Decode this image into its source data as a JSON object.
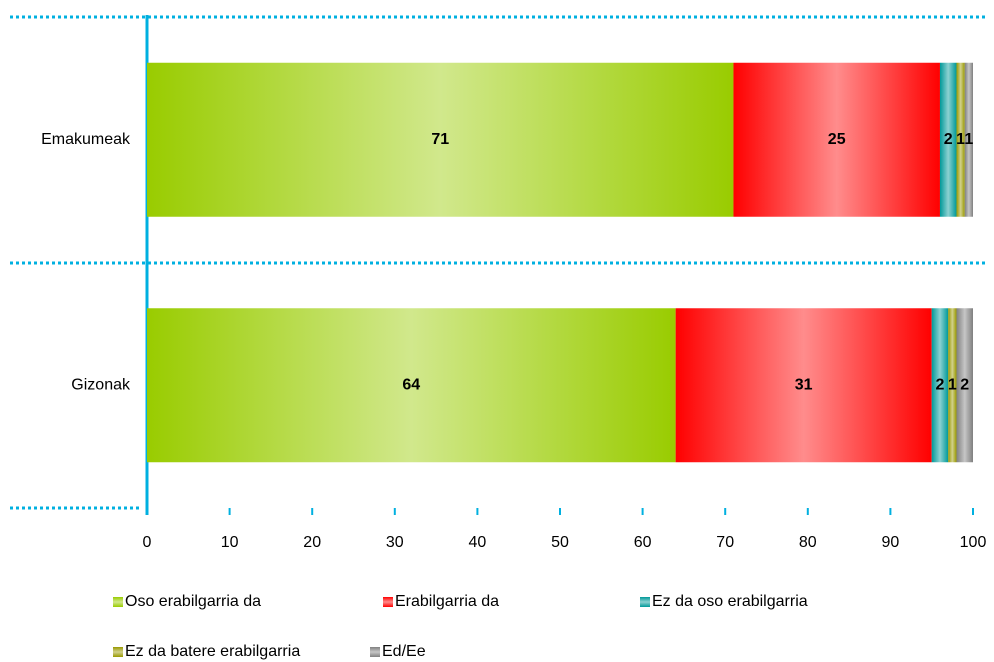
{
  "chart_data": {
    "type": "stacked-bar-horizontal",
    "categories": [
      "Emakumeak",
      "Gizonak"
    ],
    "series": [
      {
        "name": "Oso erabilgarria da",
        "color": "#99cc00",
        "values": [
          71,
          64
        ]
      },
      {
        "name": "Erabilgarria da",
        "color": "#ff0000",
        "values": [
          25,
          31
        ]
      },
      {
        "name": "Ez da oso erabilgarria",
        "color": "#009999",
        "values": [
          2,
          2
        ]
      },
      {
        "name": "Ez da batere erabilgarria",
        "color": "#999900",
        "values": [
          1,
          1
        ]
      },
      {
        "name": "Ed/Ee",
        "color": "#808080",
        "values": [
          1,
          2
        ]
      }
    ],
    "xlim": [
      0,
      100
    ],
    "xticks": [
      0,
      10,
      20,
      30,
      40,
      50,
      60,
      70,
      80,
      90,
      100
    ],
    "legend": "bottom"
  }
}
